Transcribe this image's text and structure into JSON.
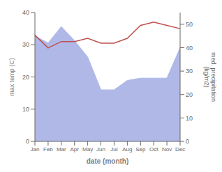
{
  "chart_data": {
    "type": "line",
    "categories": [
      "Jan",
      "Feb",
      "Mar",
      "Apr",
      "May",
      "Jun",
      "Jul",
      "Aug",
      "Sep",
      "Oct",
      "Nov",
      "Dec"
    ],
    "xlabel": "date (month)",
    "ylabel": "max temp (C)",
    "y2label": "med. precipitation\n(kg/m2)",
    "ylim": [
      0,
      40
    ],
    "yticks": [
      0,
      10,
      20,
      30,
      40
    ],
    "y2lim": [
      0,
      55
    ],
    "y2ticks": [
      0,
      10,
      20,
      30,
      40,
      50
    ],
    "series": [
      {
        "type": "area",
        "axis": "y2",
        "color": "#b0b8e8",
        "values": [
          45,
          42,
          49,
          43,
          36,
          22,
          22,
          26,
          27,
          27,
          27,
          40
        ]
      },
      {
        "type": "line",
        "color": "#c0504d",
        "values": [
          33,
          29,
          31,
          31,
          32,
          30.5,
          30.5,
          32,
          36,
          37,
          36,
          35
        ]
      }
    ]
  }
}
